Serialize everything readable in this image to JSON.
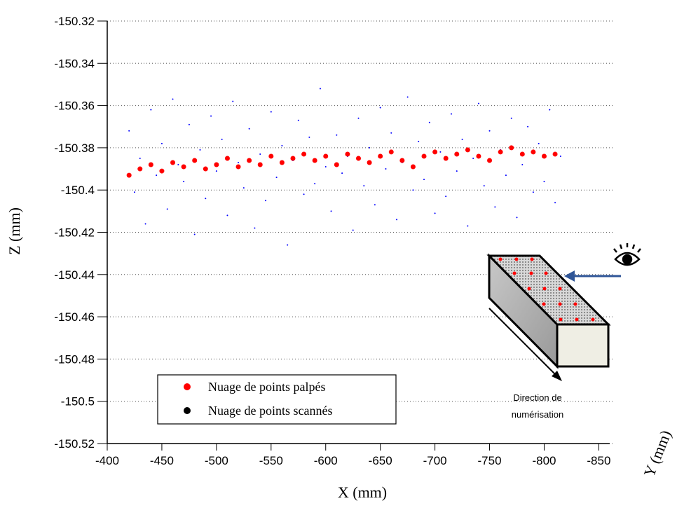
{
  "chart_data": {
    "type": "scatter",
    "x_axis_label": "X (mm)",
    "y_axis_label": "Z (mm)",
    "depth_axis_label": "Y (mm)",
    "xlim": [
      -400,
      -860
    ],
    "ylim": [
      -150.52,
      -150.32
    ],
    "xticks": [
      -400,
      -450,
      -500,
      -550,
      -600,
      -650,
      -700,
      -750,
      -800,
      -850
    ],
    "yticks": [
      -150.52,
      -150.5,
      -150.48,
      -150.46,
      -150.44,
      -150.42,
      -150.4,
      -150.38,
      -150.36,
      -150.34,
      -150.32
    ],
    "grid": true,
    "legend_position": "lower left",
    "annotation_lines": [
      "Direction de",
      "numérisation"
    ],
    "series": [
      {
        "name": "Nuage de points scannés",
        "color": "#0000ff",
        "legend_color": "#000000",
        "marker_size": 1,
        "x": [
          -420,
          -425,
          -430,
          -435,
          -440,
          -445,
          -450,
          -455,
          -460,
          -465,
          -470,
          -475,
          -480,
          -485,
          -490,
          -495,
          -500,
          -505,
          -510,
          -515,
          -520,
          -525,
          -530,
          -535,
          -540,
          -545,
          -550,
          -555,
          -560,
          -565,
          -570,
          -575,
          -580,
          -585,
          -590,
          -595,
          -600,
          -605,
          -610,
          -615,
          -620,
          -625,
          -630,
          -635,
          -640,
          -645,
          -650,
          -655,
          -660,
          -665,
          -670,
          -675,
          -680,
          -685,
          -690,
          -695,
          -700,
          -705,
          -710,
          -715,
          -720,
          -725,
          -730,
          -735,
          -740,
          -745,
          -750,
          -755,
          -760,
          -765,
          -770,
          -775,
          -780,
          -785,
          -790,
          -795,
          -800,
          -805,
          -810,
          -815
        ],
        "values": [
          -150.372,
          -150.401,
          -150.385,
          -150.416,
          -150.362,
          -150.393,
          -150.378,
          -150.409,
          -150.357,
          -150.388,
          -150.396,
          -150.369,
          -150.421,
          -150.381,
          -150.404,
          -150.365,
          -150.391,
          -150.376,
          -150.412,
          -150.358,
          -150.387,
          -150.399,
          -150.371,
          -150.418,
          -150.383,
          -150.405,
          -150.363,
          -150.394,
          -150.379,
          -150.426,
          -150.386,
          -150.367,
          -150.402,
          -150.375,
          -150.397,
          -150.352,
          -150.389,
          -150.41,
          -150.374,
          -150.392,
          -150.384,
          -150.419,
          -150.366,
          -150.398,
          -150.38,
          -150.407,
          -150.361,
          -150.39,
          -150.373,
          -150.414,
          -150.387,
          -150.356,
          -150.4,
          -150.377,
          -150.395,
          -150.368,
          -150.411,
          -150.382,
          -150.403,
          -150.364,
          -150.391,
          -150.376,
          -150.417,
          -150.385,
          -150.359,
          -150.398,
          -150.372,
          -150.408,
          -150.381,
          -150.393,
          -150.366,
          -150.413,
          -150.388,
          -150.37,
          -150.401,
          -150.378,
          -150.396,
          -150.362,
          -150.406,
          -150.384
        ]
      },
      {
        "name": "Nuage de points palpés",
        "color": "#ff0000",
        "legend_color": "#ff0000",
        "marker_size": 3.5,
        "x": [
          -420,
          -430,
          -440,
          -450,
          -460,
          -470,
          -480,
          -490,
          -500,
          -510,
          -520,
          -530,
          -540,
          -550,
          -560,
          -570,
          -580,
          -590,
          -600,
          -610,
          -620,
          -630,
          -640,
          -650,
          -660,
          -670,
          -680,
          -690,
          -700,
          -710,
          -720,
          -730,
          -740,
          -750,
          -760,
          -770,
          -780,
          -790,
          -800,
          -810
        ],
        "values": [
          -150.393,
          -150.39,
          -150.388,
          -150.391,
          -150.387,
          -150.389,
          -150.386,
          -150.39,
          -150.388,
          -150.385,
          -150.389,
          -150.386,
          -150.388,
          -150.384,
          -150.387,
          -150.385,
          -150.383,
          -150.386,
          -150.384,
          -150.388,
          -150.383,
          -150.385,
          -150.387,
          -150.384,
          -150.382,
          -150.386,
          -150.389,
          -150.384,
          -150.382,
          -150.385,
          -150.383,
          -150.381,
          -150.384,
          -150.386,
          -150.382,
          -150.38,
          -150.383,
          -150.382,
          -150.384,
          -150.383
        ]
      }
    ]
  }
}
